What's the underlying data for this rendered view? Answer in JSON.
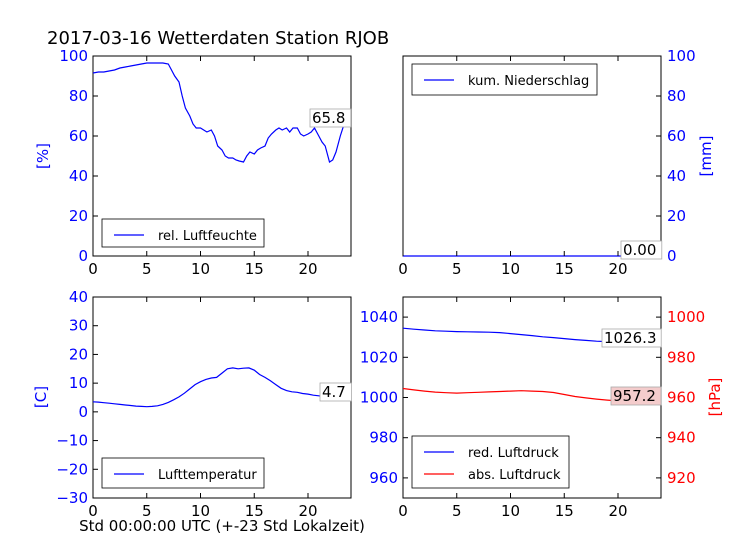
{
  "title": "2017-03-16 Wetterdaten Station RJOB",
  "xlabel": "Std 00:00:00 UTC (+-23 Std Lokalzeit)",
  "colors": {
    "blue": "#0000ff",
    "red": "#ff0000",
    "ann_bg": "#ffffff",
    "ann_bg_red": "#f4cccc"
  },
  "chart_data": [
    {
      "id": "humidity",
      "type": "line",
      "xlim": [
        0,
        24
      ],
      "ylim": [
        0,
        100
      ],
      "x_ticks": [
        "0",
        "5",
        "10",
        "15",
        "20"
      ],
      "y_ticks": [
        "0",
        "20",
        "40",
        "60",
        "80",
        "100"
      ],
      "ylabel": "[%]",
      "legend": {
        "label": "rel. Luftfeuchte",
        "position": "lower-left"
      },
      "annotation": "65.8",
      "series": [
        {
          "name": "rel. Luftfeuchte",
          "color": "#0000ff",
          "x": [
            0,
            0.5,
            1,
            1.5,
            2,
            2.5,
            3,
            3.5,
            4,
            4.5,
            5,
            5.5,
            6,
            6.5,
            7,
            7.3,
            7.6,
            8,
            8.3,
            8.6,
            9,
            9.3,
            9.6,
            10,
            10.3,
            10.6,
            11,
            11.3,
            11.6,
            12,
            12.3,
            12.6,
            13,
            13.3,
            13.6,
            14,
            14.3,
            14.6,
            15,
            15.3,
            15.6,
            16,
            16.3,
            16.6,
            17,
            17.3,
            17.6,
            18,
            18.3,
            18.6,
            19,
            19.3,
            19.6,
            20,
            20.3,
            20.6,
            21,
            21.3,
            21.6,
            22,
            22.3,
            22.6,
            23,
            23.3,
            23.6
          ],
          "y": [
            91.5,
            92,
            92,
            92.5,
            93,
            94,
            94.5,
            95,
            95.5,
            96,
            96.5,
            96.5,
            96.5,
            96.5,
            96,
            93,
            90,
            87,
            80,
            74,
            70,
            66,
            64,
            64,
            63,
            62,
            63,
            60,
            55,
            53,
            50,
            49,
            49,
            48,
            47.5,
            47,
            50,
            52,
            51,
            53,
            54,
            55,
            59,
            61,
            63,
            64,
            63,
            64,
            62,
            64,
            64,
            61,
            60,
            61,
            62,
            64,
            60,
            57,
            55,
            47,
            48,
            52,
            60,
            65,
            65.8
          ]
        }
      ]
    },
    {
      "id": "precipitation",
      "type": "line",
      "xlim": [
        0,
        24
      ],
      "ylim": [
        0,
        100
      ],
      "x_ticks": [
        "0",
        "5",
        "10",
        "15",
        "20"
      ],
      "y_ticks": [
        "0",
        "20",
        "40",
        "60",
        "80",
        "100"
      ],
      "ylabel": "[mm]",
      "legend": {
        "label": "kum. Niederschlag",
        "position": "upper-left"
      },
      "annotation": "0.00",
      "series": [
        {
          "name": "kum. Niederschlag",
          "color": "#0000ff",
          "x": [
            0,
            24
          ],
          "y": [
            0,
            0
          ]
        }
      ]
    },
    {
      "id": "temperature",
      "type": "line",
      "xlim": [
        0,
        24
      ],
      "ylim": [
        -30,
        40
      ],
      "x_ticks": [
        "0",
        "5",
        "10",
        "15",
        "20"
      ],
      "y_ticks": [
        "−30",
        "−20",
        "−10",
        "0",
        "10",
        "20",
        "30",
        "40"
      ],
      "y_tick_values": [
        -30,
        -20,
        -10,
        0,
        10,
        20,
        30,
        40
      ],
      "ylabel": "[C]",
      "legend": {
        "label": "Lufttemperatur",
        "position": "lower-left"
      },
      "annotation": "4.7",
      "series": [
        {
          "name": "Lufttemperatur",
          "color": "#0000ff",
          "x": [
            0,
            0.5,
            1,
            1.5,
            2,
            2.5,
            3,
            3.5,
            4,
            4.5,
            5,
            5.5,
            6,
            6.5,
            7,
            7.5,
            8,
            8.5,
            9,
            9.5,
            10,
            10.5,
            11,
            11.5,
            12,
            12.5,
            13,
            13.5,
            14,
            14.5,
            15,
            15.5,
            16,
            16.5,
            17,
            17.5,
            18,
            18.5,
            19,
            19.5,
            20,
            20.5,
            21,
            21.5,
            22,
            22.5,
            23,
            23.5
          ],
          "y": [
            3.5,
            3.4,
            3.2,
            3.0,
            2.8,
            2.6,
            2.4,
            2.2,
            2.0,
            1.9,
            1.8,
            1.9,
            2.1,
            2.6,
            3.3,
            4.2,
            5.2,
            6.5,
            8.0,
            9.5,
            10.5,
            11.3,
            11.8,
            12.0,
            13.5,
            15.0,
            15.3,
            15.0,
            15.2,
            15.3,
            14.5,
            13.0,
            12.0,
            10.8,
            9.5,
            8.2,
            7.4,
            7.0,
            6.8,
            6.4,
            6.2,
            5.8,
            5.6,
            5.3,
            5.0,
            4.9,
            4.8,
            4.7
          ]
        }
      ]
    },
    {
      "id": "pressure",
      "type": "line",
      "xlim": [
        0,
        24
      ],
      "ylim_left": [
        950,
        1050
      ],
      "ylim_right": [
        910,
        1010
      ],
      "x_ticks": [
        "0",
        "5",
        "10",
        "15",
        "20"
      ],
      "y_ticks_left": [
        "960",
        "980",
        "1000",
        "1020",
        "1040"
      ],
      "y_ticks_right": [
        "920",
        "940",
        "960",
        "980",
        "1000"
      ],
      "ylabel_right": "[hPa]",
      "legend": {
        "position": "lower-left"
      },
      "annotations": [
        "1026.3",
        "957.2"
      ],
      "series": [
        {
          "name": "red. Luftdruck",
          "color": "#0000ff",
          "axis": "left",
          "x": [
            0,
            1,
            2,
            3,
            4,
            5,
            6,
            7,
            8,
            9,
            10,
            11,
            12,
            13,
            14,
            15,
            16,
            17,
            18,
            19,
            20,
            21,
            22,
            23,
            23.8
          ],
          "y": [
            1034.5,
            1034,
            1033.6,
            1033.2,
            1033,
            1032.8,
            1032.7,
            1032.6,
            1032.5,
            1032.3,
            1031.8,
            1031.3,
            1030.8,
            1030.2,
            1029.8,
            1029.3,
            1028.8,
            1028.4,
            1028.0,
            1027.8,
            1027.6,
            1027.4,
            1027.0,
            1026.6,
            1026.3
          ]
        },
        {
          "name": "abs. Luftdruck",
          "color": "#ff0000",
          "axis": "right",
          "x": [
            0,
            1,
            2,
            3,
            4,
            5,
            6,
            7,
            8,
            9,
            10,
            11,
            12,
            13,
            14,
            15,
            16,
            17,
            18,
            19,
            20,
            21,
            22,
            23,
            23.8
          ],
          "y": [
            964.5,
            963.8,
            963.2,
            962.7,
            962.4,
            962.2,
            962.4,
            962.6,
            962.8,
            963.0,
            963.2,
            963.4,
            963.2,
            963.0,
            962.5,
            961.5,
            960.5,
            959.8,
            959.2,
            958.7,
            958.3,
            958.0,
            957.7,
            957.4,
            957.2
          ]
        }
      ]
    }
  ]
}
